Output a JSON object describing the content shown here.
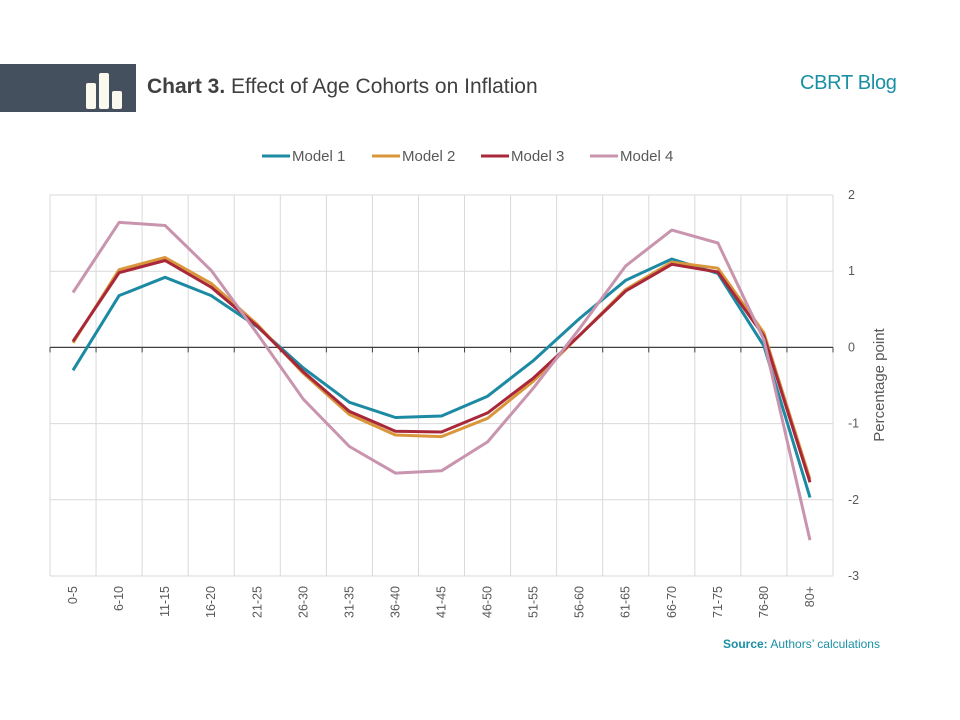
{
  "header": {
    "title_bold": "Chart 3.",
    "title_rest": " Effect of Age Cohorts on Inflation",
    "brand": "CBRT Blog",
    "icon": "bar-chart-icon"
  },
  "footer": {
    "source_label": "Source:",
    "source_text": " Authors’ calculations"
  },
  "chart_data": {
    "type": "line",
    "title": "Chart 3. Effect of Age Cohorts on Inflation",
    "xlabel": "",
    "ylabel": "Percentage point",
    "y_axis_side": "right",
    "ylim": [
      -3,
      2
    ],
    "yticks": [
      2,
      1,
      0,
      -1,
      -2,
      -3
    ],
    "grid": true,
    "legend_position": "top",
    "categories": [
      "0-5",
      "6-10",
      "11-15",
      "16-20",
      "21-25",
      "26-30",
      "31-35",
      "36-40",
      "41-45",
      "46-50",
      "51-55",
      "56-60",
      "61-65",
      "66-70",
      "71-75",
      "76-80",
      "80+"
    ],
    "series": [
      {
        "name": "Model 1",
        "color": "#1b8aa2",
        "values": [
          -0.3,
          0.68,
          0.92,
          0.68,
          0.27,
          -0.27,
          -0.72,
          -0.92,
          -0.9,
          -0.64,
          -0.17,
          0.38,
          0.88,
          1.16,
          0.97,
          0.02,
          -1.97
        ]
      },
      {
        "name": "Model 2",
        "color": "#d9963a",
        "values": [
          0.06,
          1.02,
          1.18,
          0.84,
          0.3,
          -0.34,
          -0.88,
          -1.15,
          -1.17,
          -0.93,
          -0.44,
          0.16,
          0.76,
          1.12,
          1.04,
          0.19,
          -1.73
        ]
      },
      {
        "name": "Model 3",
        "color": "#a8283a",
        "values": [
          0.08,
          0.98,
          1.14,
          0.79,
          0.28,
          -0.32,
          -0.84,
          -1.1,
          -1.11,
          -0.86,
          -0.4,
          0.16,
          0.74,
          1.09,
          0.99,
          0.15,
          -1.77
        ]
      },
      {
        "name": "Model 4",
        "color": "#c994ad",
        "values": [
          0.72,
          1.64,
          1.6,
          1.01,
          0.18,
          -0.68,
          -1.3,
          -1.65,
          -1.62,
          -1.24,
          -0.53,
          0.25,
          1.07,
          1.54,
          1.37,
          0.1,
          -2.53
        ]
      }
    ]
  }
}
